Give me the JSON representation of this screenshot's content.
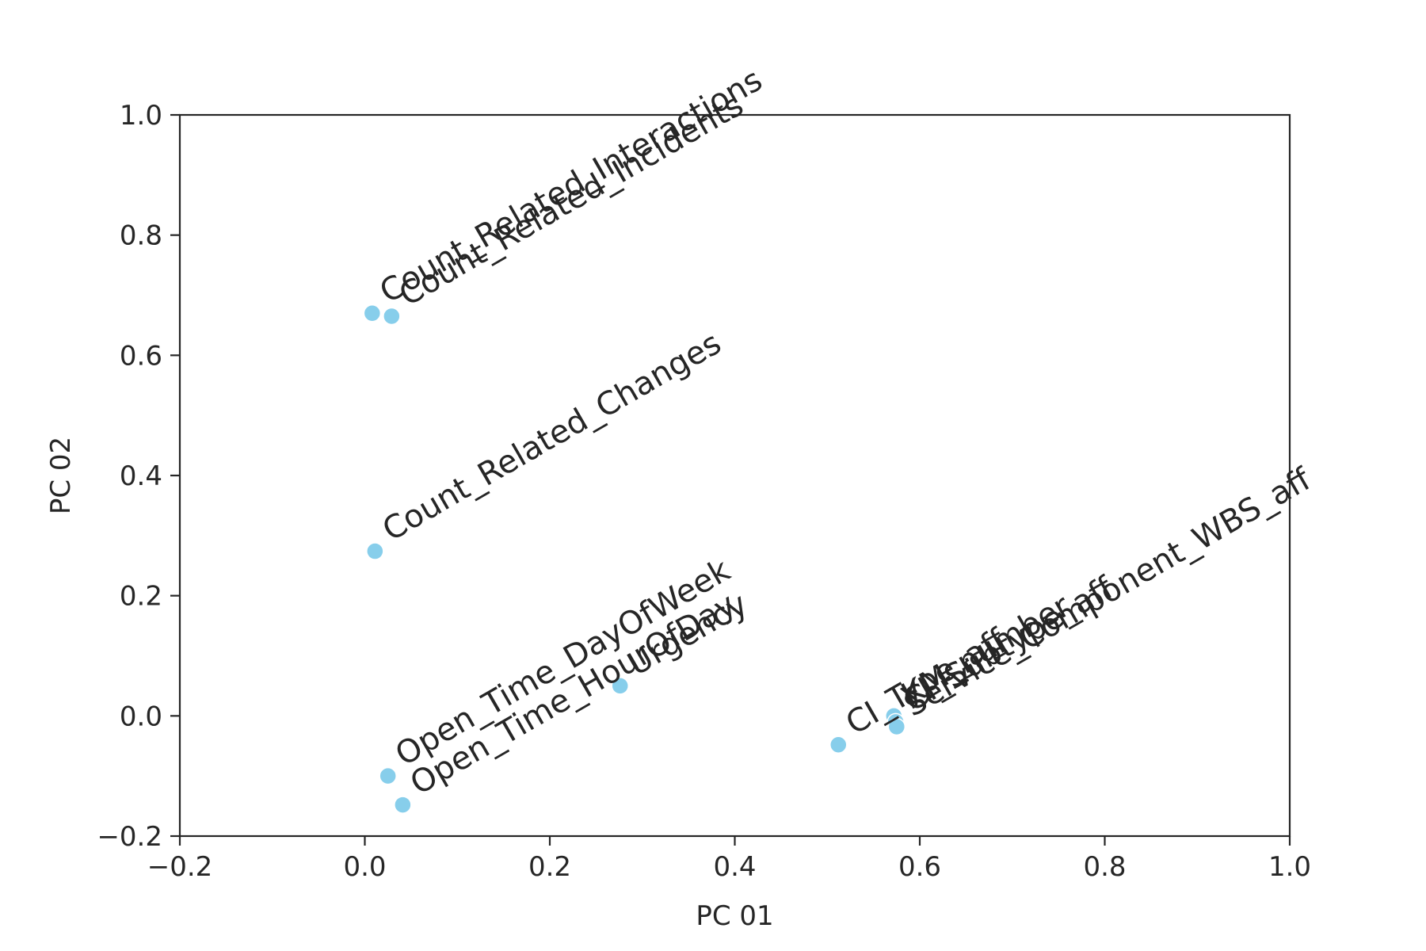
{
  "chart_data": {
    "type": "scatter",
    "title": "",
    "xlabel": "PC 01",
    "ylabel": "PC 02",
    "xlim": [
      -0.2,
      1.0
    ],
    "ylim": [
      -0.2,
      1.0
    ],
    "xticks": [
      -0.2,
      0.0,
      0.2,
      0.4,
      0.6,
      0.8,
      1.0
    ],
    "yticks": [
      -0.2,
      0.0,
      0.2,
      0.4,
      0.6,
      0.8,
      1.0
    ],
    "xtick_labels": [
      "−0.2",
      "0.0",
      "0.2",
      "0.4",
      "0.6",
      "0.8",
      "1.0"
    ],
    "ytick_labels": [
      "−0.2",
      "0.0",
      "0.2",
      "0.4",
      "0.6",
      "0.8",
      "1.0"
    ],
    "grid": false,
    "point_color": "#87ceeb",
    "text_color": "#262626",
    "label_rotation_deg": 30,
    "points": [
      {
        "label": "Count_Related_Interactions",
        "x": 0.008,
        "y": 0.67
      },
      {
        "label": "Count_Related_Incidents",
        "x": 0.029,
        "y": 0.665
      },
      {
        "label": "Count_Related_Changes",
        "x": 0.011,
        "y": 0.274
      },
      {
        "label": "Open_Time_DayOfWeek",
        "x": 0.025,
        "y": -0.1
      },
      {
        "label": "Open_Time_HourOfDay",
        "x": 0.041,
        "y": -0.148
      },
      {
        "label": "Urgency",
        "x": 0.276,
        "y": 0.05
      },
      {
        "label": "CI_Type_aff",
        "x": 0.512,
        "y": -0.048
      },
      {
        "label": "KM_number",
        "x": 0.572,
        "y": 0.0
      },
      {
        "label": "CI_Subtype_aff",
        "x": 0.574,
        "y": -0.01
      },
      {
        "label": "Service_Component_WBS_aff",
        "x": 0.575,
        "y": -0.018
      }
    ]
  }
}
